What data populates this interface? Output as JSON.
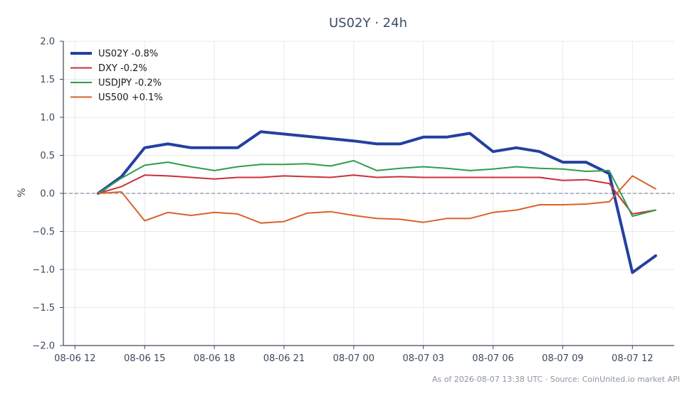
{
  "chart_data": {
    "type": "line",
    "title": "US02Y · 24h",
    "ylabel": "%",
    "xlabel": "",
    "ylim": [
      -2.0,
      2.0
    ],
    "yticks": [
      "2.0",
      "1.5",
      "1.0",
      "0.5",
      "0.0",
      "−0.5",
      "−1.0",
      "−1.5",
      "−2.0"
    ],
    "ytick_values": [
      2.0,
      1.5,
      1.0,
      0.5,
      0.0,
      -0.5,
      -1.0,
      -1.5,
      -2.0
    ],
    "xlim_hours": [
      -0.5,
      25.8
    ],
    "xticks": [
      "08-06 12",
      "08-06 15",
      "08-06 18",
      "08-06 21",
      "08-07 00",
      "08-07 03",
      "08-07 06",
      "08-07 09",
      "08-07 12"
    ],
    "xtick_hours": [
      0,
      3,
      6,
      9,
      12,
      15,
      18,
      21,
      24
    ],
    "grid": true,
    "zero_line": true,
    "legend_position": "top-left",
    "x_hours": [
      1,
      2,
      3,
      4,
      5,
      6,
      7,
      8,
      9,
      10,
      11,
      12,
      13,
      14,
      15,
      16,
      17,
      18,
      19,
      20,
      21,
      22,
      23,
      24,
      25
    ],
    "series": [
      {
        "name": "US02Y -0.8%",
        "color": "#2440a0",
        "width": 4,
        "values": [
          0.0,
          0.22,
          0.6,
          0.65,
          0.6,
          0.6,
          0.6,
          0.81,
          0.78,
          0.75,
          0.72,
          0.69,
          0.65,
          0.65,
          0.74,
          0.74,
          0.79,
          0.55,
          0.6,
          0.55,
          0.41,
          0.41,
          0.26,
          -1.04,
          -0.82
        ]
      },
      {
        "name": "DXY -0.2%",
        "color": "#c8313a",
        "width": 2,
        "values": [
          0.0,
          0.09,
          0.24,
          0.23,
          0.21,
          0.19,
          0.21,
          0.21,
          0.23,
          0.22,
          0.21,
          0.24,
          0.21,
          0.22,
          0.21,
          0.21,
          0.21,
          0.21,
          0.21,
          0.21,
          0.17,
          0.18,
          0.13,
          -0.27,
          -0.22
        ]
      },
      {
        "name": "USDJPY -0.2%",
        "color": "#2e9e4a",
        "width": 2,
        "values": [
          0.0,
          0.2,
          0.37,
          0.41,
          0.35,
          0.3,
          0.35,
          0.38,
          0.38,
          0.39,
          0.36,
          0.43,
          0.3,
          0.33,
          0.35,
          0.33,
          0.3,
          0.32,
          0.35,
          0.33,
          0.32,
          0.29,
          0.3,
          -0.3,
          -0.22
        ]
      },
      {
        "name": "US500 +0.1%",
        "color": "#d9622b",
        "width": 2,
        "values": [
          0.0,
          0.02,
          -0.36,
          -0.25,
          -0.29,
          -0.25,
          -0.27,
          -0.39,
          -0.37,
          -0.26,
          -0.24,
          -0.29,
          -0.33,
          -0.34,
          -0.38,
          -0.33,
          -0.33,
          -0.25,
          -0.22,
          -0.15,
          -0.15,
          -0.14,
          -0.11,
          0.23,
          0.06
        ]
      }
    ]
  },
  "footer": "As of 2026-08-07 13:38 UTC · Source: CoinUnited.io market API",
  "colors": {
    "zero_line": "#7f93ab",
    "grid": "#e6e9ee",
    "axis": "#3a4a5c"
  }
}
